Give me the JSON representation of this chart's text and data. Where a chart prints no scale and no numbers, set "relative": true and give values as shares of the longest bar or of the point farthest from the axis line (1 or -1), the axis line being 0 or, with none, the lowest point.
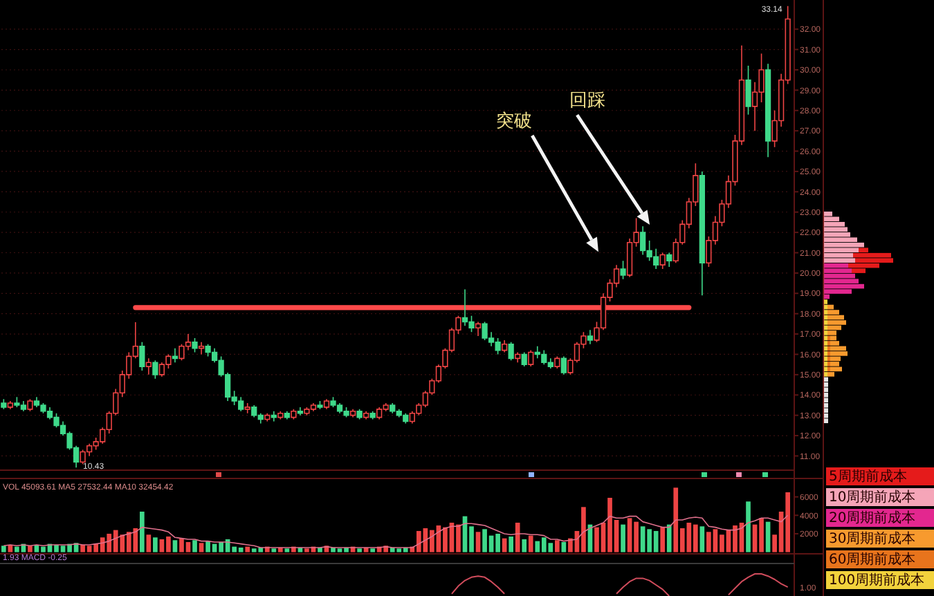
{
  "chart_data": [
    {
      "type": "candlestick",
      "categories": [
        null,
        null,
        null,
        null,
        null,
        null,
        null,
        null,
        null,
        null,
        null,
        null,
        null,
        null,
        null,
        null,
        null,
        null,
        null,
        null,
        null,
        null,
        null,
        null,
        null,
        null,
        null,
        null,
        null,
        null,
        null,
        null,
        null,
        null,
        null,
        null,
        null,
        null,
        null,
        null,
        null,
        null,
        null,
        null,
        null,
        null,
        null,
        null,
        null,
        null,
        null,
        null,
        null,
        null,
        null,
        null,
        null,
        null,
        null,
        null,
        null,
        null,
        null,
        null,
        null,
        null,
        null,
        null,
        null,
        null,
        null,
        null,
        null,
        null,
        null,
        null,
        null,
        null,
        null,
        null,
        null,
        null,
        null,
        null,
        null,
        null,
        null,
        null,
        null,
        null,
        null,
        null,
        null,
        null,
        null,
        null,
        null,
        null,
        null,
        null,
        null,
        null,
        null,
        null,
        null,
        null,
        null,
        null,
        null,
        null,
        null,
        null,
        null,
        null,
        null,
        null,
        null,
        null,
        null,
        null
      ],
      "ohlc": [
        [
          13.6,
          13.8,
          13.3,
          13.4
        ],
        [
          13.4,
          13.7,
          13.3,
          13.6
        ],
        [
          13.6,
          13.9,
          13.4,
          13.5
        ],
        [
          13.5,
          13.7,
          13.2,
          13.3
        ],
        [
          13.3,
          13.8,
          13.2,
          13.7
        ],
        [
          13.7,
          13.9,
          13.4,
          13.5
        ],
        [
          13.5,
          13.6,
          13.1,
          13.2
        ],
        [
          13.2,
          13.4,
          12.8,
          12.9
        ],
        [
          12.9,
          13.1,
          12.4,
          12.5
        ],
        [
          12.5,
          12.7,
          12.0,
          12.1
        ],
        [
          12.1,
          12.2,
          11.3,
          11.4
        ],
        [
          11.4,
          11.5,
          10.43,
          10.7
        ],
        [
          10.7,
          11.3,
          10.6,
          11.2
        ],
        [
          11.2,
          11.6,
          11.0,
          11.5
        ],
        [
          11.5,
          11.9,
          11.3,
          11.7
        ],
        [
          11.7,
          12.4,
          11.6,
          12.3
        ],
        [
          12.3,
          13.2,
          12.1,
          13.1
        ],
        [
          13.1,
          14.3,
          13.0,
          14.1
        ],
        [
          14.1,
          15.2,
          13.9,
          15.0
        ],
        [
          15.0,
          16.1,
          14.8,
          15.9
        ],
        [
          15.9,
          17.58,
          15.8,
          16.4
        ],
        [
          16.4,
          16.6,
          15.2,
          15.4
        ],
        [
          15.4,
          15.8,
          15.0,
          15.6
        ],
        [
          15.6,
          15.7,
          14.8,
          15.0
        ],
        [
          15.0,
          15.6,
          14.9,
          15.5
        ],
        [
          15.5,
          16.0,
          15.3,
          15.9
        ],
        [
          15.9,
          16.3,
          15.6,
          15.8
        ],
        [
          15.8,
          16.5,
          15.7,
          16.4
        ],
        [
          16.4,
          17.0,
          16.2,
          16.6
        ],
        [
          16.6,
          16.8,
          16.1,
          16.3
        ],
        [
          16.3,
          16.6,
          16.0,
          16.4
        ],
        [
          16.4,
          16.5,
          15.9,
          16.1
        ],
        [
          16.1,
          16.3,
          15.6,
          15.7
        ],
        [
          15.7,
          15.9,
          14.9,
          15.0
        ],
        [
          15.0,
          15.1,
          13.7,
          13.9
        ],
        [
          13.9,
          14.2,
          13.5,
          13.7
        ],
        [
          13.7,
          13.9,
          13.2,
          13.3
        ],
        [
          13.3,
          13.6,
          13.1,
          13.4
        ],
        [
          13.4,
          13.5,
          12.9,
          13.0
        ],
        [
          13.0,
          13.1,
          12.6,
          12.8
        ],
        [
          12.8,
          13.1,
          12.7,
          13.0
        ],
        [
          13.0,
          13.2,
          12.7,
          12.9
        ],
        [
          12.9,
          13.2,
          12.8,
          13.1
        ],
        [
          13.1,
          13.2,
          12.8,
          12.9
        ],
        [
          12.9,
          13.3,
          12.8,
          13.2
        ],
        [
          13.2,
          13.4,
          13.0,
          13.1
        ],
        [
          13.1,
          13.4,
          13.0,
          13.3
        ],
        [
          13.3,
          13.6,
          13.2,
          13.5
        ],
        [
          13.5,
          13.7,
          13.3,
          13.4
        ],
        [
          13.4,
          13.8,
          13.3,
          13.7
        ],
        [
          13.7,
          13.9,
          13.4,
          13.5
        ],
        [
          13.5,
          13.6,
          13.1,
          13.2
        ],
        [
          13.2,
          13.4,
          12.9,
          13.0
        ],
        [
          13.0,
          13.3,
          12.9,
          13.2
        ],
        [
          13.2,
          13.3,
          12.8,
          12.9
        ],
        [
          12.9,
          13.2,
          12.8,
          13.1
        ],
        [
          13.1,
          13.2,
          12.8,
          12.9
        ],
        [
          12.9,
          13.4,
          12.8,
          13.3
        ],
        [
          13.3,
          13.6,
          13.2,
          13.5
        ],
        [
          13.5,
          13.6,
          13.1,
          13.2
        ],
        [
          13.2,
          13.3,
          12.9,
          13.0
        ],
        [
          13.0,
          13.1,
          12.6,
          12.7
        ],
        [
          12.7,
          13.2,
          12.6,
          13.1
        ],
        [
          13.1,
          13.6,
          13.0,
          13.5
        ],
        [
          13.5,
          14.2,
          13.4,
          14.1
        ],
        [
          14.1,
          14.8,
          14.0,
          14.7
        ],
        [
          14.7,
          15.5,
          14.6,
          15.4
        ],
        [
          15.4,
          16.3,
          15.3,
          16.2
        ],
        [
          16.2,
          17.3,
          16.1,
          17.2
        ],
        [
          17.2,
          17.9,
          17.0,
          17.8
        ],
        [
          17.8,
          19.2,
          17.4,
          17.6
        ],
        [
          17.6,
          17.9,
          17.1,
          17.3
        ],
        [
          17.3,
          17.6,
          16.9,
          17.5
        ],
        [
          17.5,
          17.6,
          16.7,
          16.8
        ],
        [
          16.8,
          17.1,
          16.4,
          16.6
        ],
        [
          16.6,
          16.8,
          16.0,
          16.2
        ],
        [
          16.2,
          16.7,
          16.1,
          16.5
        ],
        [
          16.5,
          16.6,
          15.7,
          15.8
        ],
        [
          15.8,
          16.1,
          15.6,
          16.0
        ],
        [
          16.0,
          16.1,
          15.4,
          15.5
        ],
        [
          15.5,
          16.2,
          15.4,
          16.1
        ],
        [
          16.1,
          16.4,
          15.8,
          16.0
        ],
        [
          16.0,
          16.2,
          15.5,
          15.6
        ],
        [
          15.6,
          15.8,
          15.3,
          15.4
        ],
        [
          15.4,
          15.9,
          15.3,
          15.8
        ],
        [
          15.8,
          15.9,
          15.0,
          15.1
        ],
        [
          15.1,
          15.8,
          15.0,
          15.7
        ],
        [
          15.7,
          16.6,
          15.6,
          16.5
        ],
        [
          16.5,
          17.1,
          16.3,
          16.9
        ],
        [
          16.9,
          17.2,
          16.5,
          16.7
        ],
        [
          16.7,
          17.6,
          16.6,
          17.3
        ],
        [
          17.3,
          19.0,
          17.2,
          18.8
        ],
        [
          18.8,
          19.7,
          18.6,
          19.5
        ],
        [
          19.5,
          20.4,
          19.3,
          20.2
        ],
        [
          20.2,
          20.6,
          19.7,
          19.9
        ],
        [
          19.9,
          21.7,
          19.8,
          21.5
        ],
        [
          21.5,
          22.7,
          21.3,
          22.0
        ],
        [
          22.0,
          22.3,
          20.9,
          21.1
        ],
        [
          21.1,
          21.6,
          20.6,
          20.8
        ],
        [
          20.8,
          21.2,
          20.2,
          20.4
        ],
        [
          20.4,
          21.0,
          20.2,
          20.9
        ],
        [
          20.9,
          21.0,
          20.3,
          20.6
        ],
        [
          20.6,
          21.7,
          20.5,
          21.5
        ],
        [
          21.5,
          22.6,
          21.4,
          22.4
        ],
        [
          22.4,
          23.7,
          22.2,
          23.5
        ],
        [
          23.5,
          25.4,
          23.3,
          24.8
        ],
        [
          24.8,
          25.0,
          18.9,
          20.5
        ],
        [
          20.5,
          21.8,
          20.3,
          21.6
        ],
        [
          21.6,
          22.8,
          21.4,
          22.5
        ],
        [
          22.5,
          23.6,
          22.3,
          23.4
        ],
        [
          23.4,
          24.8,
          23.2,
          24.5
        ],
        [
          24.5,
          26.8,
          24.3,
          26.5
        ],
        [
          26.5,
          31.2,
          26.3,
          29.5
        ],
        [
          29.5,
          30.2,
          27.8,
          28.2
        ],
        [
          28.2,
          29.4,
          27.0,
          28.9
        ],
        [
          28.9,
          30.8,
          28.4,
          30.0
        ],
        [
          30.0,
          30.3,
          25.7,
          26.5
        ],
        [
          26.5,
          28.0,
          26.2,
          27.5
        ],
        [
          27.5,
          29.8,
          27.2,
          29.5
        ],
        [
          29.5,
          33.14,
          29.3,
          32.5
        ]
      ],
      "colors": [
        "#3fd98a",
        "#ee4444",
        "#3fd98a",
        "#3fd98a",
        "#ee4444",
        "#3fd98a",
        "#3fd98a",
        "#3fd98a",
        "#3fd98a",
        "#3fd98a",
        "#3fd98a",
        "#3fd98a",
        "#ee4444",
        "#ee4444",
        "#ee4444",
        "#ee4444",
        "#ee4444",
        "#ee4444",
        "#ee4444",
        "#ee4444",
        "#ee4444",
        "#3fd98a",
        "#ee4444",
        "#3fd98a",
        "#ee4444",
        "#ee4444",
        "#3fd98a",
        "#ee4444",
        "#ee4444",
        "#3fd98a",
        "#ee4444",
        "#3fd98a",
        "#3fd98a",
        "#3fd98a",
        "#3fd98a",
        "#3fd98a",
        "#3fd98a",
        "#ee4444",
        "#3fd98a",
        "#3fd98a",
        "#ee4444",
        "#3fd98a",
        "#ee4444",
        "#3fd98a",
        "#ee4444",
        "#3fd98a",
        "#ee4444",
        "#ee4444",
        "#3fd98a",
        "#ee4444",
        "#3fd98a",
        "#3fd98a",
        "#3fd98a",
        "#ee4444",
        "#3fd98a",
        "#ee4444",
        "#3fd98a",
        "#ee4444",
        "#ee4444",
        "#3fd98a",
        "#3fd98a",
        "#3fd98a",
        "#ee4444",
        "#ee4444",
        "#ee4444",
        "#ee4444",
        "#ee4444",
        "#ee4444",
        "#ee4444",
        "#ee4444",
        "#3fd98a",
        "#3fd98a",
        "#ee4444",
        "#3fd98a",
        "#3fd98a",
        "#3fd98a",
        "#ee4444",
        "#3fd98a",
        "#ee4444",
        "#3fd98a",
        "#ee4444",
        "#3fd98a",
        "#3fd98a",
        "#3fd98a",
        "#ee4444",
        "#3fd98a",
        "#ee4444",
        "#ee4444",
        "#ee4444",
        "#3fd98a",
        "#ee4444",
        "#ee4444",
        "#ee4444",
        "#ee4444",
        "#3fd98a",
        "#ee4444",
        "#ee4444",
        "#3fd98a",
        "#3fd98a",
        "#3fd98a",
        "#ee4444",
        "#3fd98a",
        "#ee4444",
        "#ee4444",
        "#ee4444",
        "#ee4444",
        "#3fd98a",
        "#ee4444",
        "#ee4444",
        "#ee4444",
        "#ee4444",
        "#ee4444",
        "#ee4444",
        "#3fd98a",
        "#ee4444",
        "#ee4444",
        "#3fd98a",
        "#ee4444",
        "#ee4444",
        "#ee4444"
      ],
      "series": [
        {
          "type": "line",
          "color": "#ff4a4a",
          "values": [
            null,
            null,
            null,
            null,
            null,
            null,
            null,
            null,
            null,
            null,
            null,
            null,
            null,
            null,
            null,
            null,
            null,
            null,
            null,
            null,
            18.3,
            18.3,
            18.3,
            18.3,
            18.3,
            18.3,
            18.3,
            18.3,
            18.3,
            18.3,
            18.3,
            18.3,
            18.3,
            18.3,
            18.3,
            18.3,
            18.3,
            18.3,
            18.3,
            18.3,
            18.3,
            18.3,
            18.3,
            18.3,
            18.3,
            18.3,
            18.3,
            18.3,
            18.3,
            18.3,
            18.3,
            18.3,
            18.3,
            18.3,
            18.3,
            18.3,
            18.3,
            18.3,
            18.3,
            18.3,
            18.3,
            18.3,
            18.3,
            18.3,
            18.3,
            18.3,
            18.3,
            18.3,
            18.3,
            18.3,
            18.3,
            18.3,
            18.3,
            18.3,
            18.3,
            18.3,
            18.3,
            18.3,
            18.3,
            18.3,
            18.3,
            18.3,
            18.3,
            18.3,
            18.3,
            18.3,
            18.3,
            18.3,
            18.3,
            18.3,
            18.3,
            18.3,
            18.3,
            18.3,
            18.3,
            18.3,
            18.3,
            18.3,
            18.3,
            18.3,
            18.3,
            18.3,
            18.3,
            18.3,
            18.3,
            null,
            null,
            null,
            null,
            null,
            null,
            null,
            null,
            null,
            null,
            null,
            null,
            null,
            null,
            null
          ]
        }
      ],
      "ylim": [
        10.3,
        33.3
      ],
      "yticks": [
        {
          "value": 11,
          "label": "11.00"
        },
        {
          "value": 12,
          "label": "12.00"
        },
        {
          "value": 13,
          "label": "13.00"
        },
        {
          "value": 14,
          "label": "14.00"
        },
        {
          "value": 15,
          "label": "15.00"
        },
        {
          "value": 16,
          "label": "16.00"
        },
        {
          "value": 17,
          "label": "17.00"
        },
        {
          "value": 18,
          "label": "18.00"
        },
        {
          "value": 19,
          "label": "19.00"
        },
        {
          "value": 20,
          "label": "20.00"
        },
        {
          "value": 21,
          "label": "21.00"
        },
        {
          "value": 22,
          "label": "22.00"
        },
        {
          "value": 23,
          "label": "23.00"
        },
        {
          "value": 24,
          "label": "24.00"
        },
        {
          "value": 25,
          "label": "25.00"
        },
        {
          "value": 26,
          "label": "26.00"
        },
        {
          "value": 27,
          "label": "27.00"
        },
        {
          "value": 28,
          "label": "28.00"
        },
        {
          "value": 29,
          "label": "29.00"
        },
        {
          "value": 30,
          "label": "30.00"
        },
        {
          "value": 31,
          "label": "31.00"
        },
        {
          "value": 32,
          "label": "32.00"
        }
      ],
      "grid": "y",
      "annotations": [
        "突破",
        "回踩",
        "10.43",
        "33.14"
      ]
    },
    {
      "type": "bar",
      "orientation": "horizontal",
      "stacked": true,
      "relative": true,
      "legend": "bottom right",
      "categories": [
        null,
        null,
        null,
        null,
        null,
        null,
        null,
        null,
        null,
        null,
        null,
        null,
        null,
        null,
        null,
        null,
        null,
        null,
        null,
        null,
        null,
        null,
        null,
        null,
        null,
        null,
        null,
        null,
        null,
        null,
        null,
        null,
        null,
        null,
        null,
        null,
        null,
        null,
        null,
        null,
        null
      ],
      "series": [
        {
          "color": "#e6e6e6",
          "values": [
            null,
            null,
            null,
            null,
            null,
            null,
            null,
            null,
            null,
            null,
            null,
            null,
            null,
            null,
            null,
            null,
            null,
            null,
            null,
            null,
            null,
            null,
            null,
            null,
            null,
            null,
            null,
            null,
            null,
            null,
            null,
            null,
            0.06,
            0.06,
            0.06,
            0.06,
            0.06,
            0.06,
            0.06,
            0.06,
            0.06
          ]
        },
        {
          "name": "100周期前成本",
          "color": "#f2d23c",
          "values": [
            null,
            null,
            null,
            null,
            null,
            null,
            null,
            null,
            null,
            null,
            null,
            null,
            null,
            null,
            null,
            null,
            null,
            0.05,
            0.05,
            0.05,
            0.05,
            0.05,
            0.05,
            0.05,
            0.05,
            0.05,
            0.05,
            0.05,
            0.05,
            0.05,
            0.05,
            0.05,
            null,
            null,
            null,
            null,
            null,
            null,
            null,
            null,
            null
          ]
        },
        {
          "name": "60周期前成本",
          "color": "#e8741c",
          "values": [
            null,
            null,
            null,
            null,
            null,
            null,
            null,
            null,
            null,
            null,
            null,
            null,
            null,
            null,
            null,
            null,
            null,
            null,
            null,
            null,
            null,
            null,
            null,
            null,
            0.04,
            0.04,
            0.04,
            0.04,
            0.04,
            0.04,
            0.04,
            null,
            null,
            null,
            null,
            null,
            null,
            null,
            null,
            null,
            null
          ]
        },
        {
          "name": "30周期前成本",
          "color": "#f79a2e",
          "values": [
            null,
            null,
            null,
            null,
            null,
            null,
            null,
            null,
            null,
            null,
            null,
            null,
            null,
            null,
            null,
            null,
            null,
            null,
            0.09,
            0.17,
            0.24,
            0.27,
            0.2,
            0.13,
            0.09,
            0.13,
            0.23,
            0.25,
            0.15,
            0.13,
            0.17,
            0.1,
            null,
            null,
            null,
            null,
            null,
            null,
            null,
            null,
            null
          ]
        },
        {
          "name": "20周期前成本",
          "color": "#e3278f",
          "values": [
            null,
            null,
            null,
            null,
            null,
            null,
            null,
            null,
            null,
            null,
            0.35,
            0.4,
            0.45,
            0.5,
            0.58,
            0.4,
            0.08,
            null,
            null,
            null,
            null,
            null,
            null,
            null,
            null,
            null,
            null,
            null,
            null,
            null,
            null,
            null,
            null,
            null,
            null,
            null,
            null,
            null,
            null,
            null,
            null
          ]
        },
        {
          "name": "10周期前成本",
          "color": "#f5a5b8",
          "values": [
            0.12,
            0.22,
            0.3,
            0.34,
            0.38,
            0.48,
            0.58,
            0.5,
            0.42,
            0.45,
            null,
            null,
            null,
            null,
            null,
            null,
            null,
            null,
            null,
            null,
            null,
            null,
            null,
            null,
            null,
            null,
            null,
            null,
            null,
            null,
            null,
            null,
            null,
            null,
            null,
            null,
            null,
            null,
            null,
            null,
            null
          ]
        },
        {
          "name": "5周期前成本",
          "color": "#e51b1b",
          "values": [
            null,
            null,
            null,
            null,
            null,
            null,
            null,
            0.14,
            0.55,
            0.55,
            0.45,
            0.2,
            null,
            null,
            null,
            null,
            null,
            null,
            null,
            null,
            null,
            null,
            null,
            null,
            null,
            null,
            null,
            null,
            null,
            null,
            null,
            null,
            null,
            null,
            null,
            null,
            null,
            null,
            null,
            null,
            null
          ]
        }
      ]
    },
    {
      "type": "bar",
      "title": "VOL 45093.61 MA5 27532.44 MA10 32454.42",
      "categories": [
        null,
        null,
        null,
        null,
        null,
        null,
        null,
        null,
        null,
        null,
        null,
        null,
        null,
        null,
        null,
        null,
        null,
        null,
        null,
        null,
        null,
        null,
        null,
        null,
        null,
        null,
        null,
        null,
        null,
        null,
        null,
        null,
        null,
        null,
        null,
        null,
        null,
        null,
        null,
        null,
        null,
        null,
        null,
        null,
        null,
        null,
        null,
        null,
        null,
        null,
        null,
        null,
        null,
        null,
        null,
        null,
        null,
        null,
        null,
        null,
        null,
        null,
        null,
        null,
        null,
        null,
        null,
        null,
        null,
        null,
        null,
        null,
        null,
        null,
        null,
        null,
        null,
        null,
        null,
        null,
        null,
        null,
        null,
        null,
        null,
        null,
        null,
        null,
        null,
        null,
        null,
        null,
        null,
        null,
        null,
        null,
        null,
        null,
        null,
        null,
        null,
        null,
        null,
        null,
        null,
        null,
        null,
        null,
        null,
        null,
        null,
        null,
        null,
        null,
        null,
        null,
        null,
        null,
        null,
        null
      ],
      "series": [
        {
          "type": "bar",
          "values": [
            700,
            800,
            600,
            900,
            700,
            800,
            600,
            900,
            800,
            700,
            900,
            1000,
            800,
            700,
            900,
            1600,
            2000,
            2400,
            1900,
            2200,
            2600,
            4400,
            1900,
            1600,
            1400,
            1700,
            1300,
            1500,
            1100,
            1300,
            1000,
            1200,
            900,
            1100,
            1400,
            600,
            500,
            600,
            400,
            500,
            600,
            400,
            500,
            400,
            600,
            500,
            400,
            600,
            500,
            700,
            500,
            400,
            500,
            600,
            400,
            500,
            400,
            600,
            700,
            500,
            400,
            500,
            600,
            2300,
            2600,
            2400,
            2900,
            2700,
            3200,
            3000,
            3900,
            2800,
            2200,
            2500,
            1800,
            2000,
            1500,
            1700,
            3200,
            1400,
            1800,
            1200,
            1600,
            1000,
            1300,
            1100,
            1500,
            2300,
            4900,
            3000,
            2700,
            3200,
            5900,
            3500,
            3000,
            3700,
            3300,
            2800,
            2500,
            2300,
            2700,
            3000,
            7000,
            2600,
            3200,
            3000,
            2800,
            2200,
            2500,
            1900,
            2400,
            2900,
            3200,
            5500,
            3000,
            3700,
            3300,
            1900,
            4400,
            6500
          ],
          "colors": [
            "#3fd98a",
            "#ee4444",
            "#3fd98a",
            "#3fd98a",
            "#ee4444",
            "#3fd98a",
            "#3fd98a",
            "#3fd98a",
            "#3fd98a",
            "#3fd98a",
            "#3fd98a",
            "#3fd98a",
            "#ee4444",
            "#ee4444",
            "#ee4444",
            "#ee4444",
            "#ee4444",
            "#ee4444",
            "#ee4444",
            "#ee4444",
            "#ee4444",
            "#3fd98a",
            "#ee4444",
            "#3fd98a",
            "#ee4444",
            "#ee4444",
            "#3fd98a",
            "#ee4444",
            "#ee4444",
            "#3fd98a",
            "#ee4444",
            "#3fd98a",
            "#3fd98a",
            "#3fd98a",
            "#3fd98a",
            "#3fd98a",
            "#3fd98a",
            "#ee4444",
            "#3fd98a",
            "#3fd98a",
            "#ee4444",
            "#3fd98a",
            "#ee4444",
            "#3fd98a",
            "#ee4444",
            "#3fd98a",
            "#ee4444",
            "#ee4444",
            "#3fd98a",
            "#ee4444",
            "#3fd98a",
            "#3fd98a",
            "#3fd98a",
            "#ee4444",
            "#3fd98a",
            "#ee4444",
            "#3fd98a",
            "#ee4444",
            "#ee4444",
            "#3fd98a",
            "#3fd98a",
            "#3fd98a",
            "#ee4444",
            "#ee4444",
            "#ee4444",
            "#ee4444",
            "#ee4444",
            "#ee4444",
            "#ee4444",
            "#ee4444",
            "#3fd98a",
            "#3fd98a",
            "#ee4444",
            "#3fd98a",
            "#3fd98a",
            "#3fd98a",
            "#ee4444",
            "#3fd98a",
            "#ee4444",
            "#3fd98a",
            "#ee4444",
            "#3fd98a",
            "#3fd98a",
            "#3fd98a",
            "#ee4444",
            "#3fd98a",
            "#ee4444",
            "#ee4444",
            "#ee4444",
            "#3fd98a",
            "#ee4444",
            "#ee4444",
            "#ee4444",
            "#ee4444",
            "#3fd98a",
            "#ee4444",
            "#ee4444",
            "#3fd98a",
            "#3fd98a",
            "#3fd98a",
            "#ee4444",
            "#3fd98a",
            "#ee4444",
            "#ee4444",
            "#ee4444",
            "#ee4444",
            "#3fd98a",
            "#ee4444",
            "#ee4444",
            "#ee4444",
            "#ee4444",
            "#ee4444",
            "#ee4444",
            "#3fd98a",
            "#ee4444",
            "#ee4444",
            "#3fd98a",
            "#ee4444",
            "#ee4444",
            "#ee4444"
          ]
        },
        {
          "type": "line",
          "color": "#e0708c",
          "values": [
            700,
            800,
            700,
            800,
            700,
            800,
            700,
            800,
            800,
            800,
            800,
            900,
            800,
            800,
            900,
            1000,
            1200,
            1500,
            1800,
            2000,
            2200,
            2700,
            2600,
            2500,
            2400,
            2200,
            1600,
            1500,
            1400,
            1400,
            1200,
            1200,
            1100,
            1100,
            1100,
            1000,
            900,
            800,
            700,
            500,
            500,
            500,
            500,
            500,
            500,
            500,
            500,
            500,
            500,
            600,
            500,
            500,
            500,
            500,
            500,
            500,
            500,
            500,
            600,
            500,
            500,
            500,
            500,
            900,
            1300,
            1700,
            2200,
            2600,
            2800,
            2800,
            3100,
            3100,
            3000,
            2900,
            2600,
            2300,
            2000,
            1900,
            2000,
            2000,
            1900,
            1900,
            1800,
            1400,
            1400,
            1200,
            1300,
            1400,
            2200,
            2600,
            2900,
            3200,
            3900,
            3700,
            3700,
            3900,
            3900,
            3300,
            3100,
            2900,
            2700,
            2700,
            3500,
            3500,
            3700,
            3800,
            3700,
            2800,
            2700,
            2500,
            2400,
            2400,
            2600,
            3200,
            3400,
            3700,
            3700,
            3500,
            3300,
            4000
          ]
        }
      ],
      "ylim": [
        0,
        8000
      ],
      "yticks": [
        2000,
        4000,
        6000
      ]
    },
    {
      "type": "line",
      "relative": true,
      "title": "1.93 MACD -0.25",
      "annotations": [
        "1.00"
      ],
      "categories": [
        null,
        null,
        null,
        null,
        null,
        null,
        null,
        null,
        null,
        null,
        null,
        null,
        null,
        null,
        null,
        null,
        null,
        null,
        null,
        null,
        null,
        null,
        null,
        null,
        null,
        null,
        null,
        null,
        null,
        null,
        null,
        null,
        null,
        null,
        null,
        null,
        null,
        null,
        null,
        null,
        null,
        null,
        null,
        null,
        null,
        null,
        null,
        null,
        null,
        null,
        null,
        null,
        null,
        null,
        null,
        null,
        null,
        null,
        null,
        null,
        null,
        null,
        null,
        null,
        null,
        null,
        null,
        null,
        null,
        null,
        null,
        null,
        null,
        null,
        null,
        null,
        null,
        null,
        null,
        null,
        null,
        null,
        null,
        null,
        null,
        null,
        null,
        null,
        null,
        null,
        null,
        null,
        null,
        null,
        null,
        null,
        null,
        null,
        null,
        null,
        null,
        null,
        null,
        null,
        null,
        null,
        null,
        null,
        null,
        null,
        null,
        null,
        null,
        null,
        null,
        null,
        null,
        null,
        null,
        null
      ],
      "series": [
        {
          "color": "#d04c5c",
          "values": [
            null,
            null,
            null,
            null,
            null,
            null,
            null,
            null,
            null,
            null,
            null,
            null,
            null,
            null,
            null,
            null,
            null,
            null,
            null,
            null,
            null,
            null,
            null,
            null,
            null,
            null,
            null,
            null,
            null,
            null,
            null,
            null,
            null,
            null,
            null,
            null,
            null,
            null,
            null,
            null,
            null,
            null,
            null,
            null,
            null,
            null,
            null,
            null,
            null,
            null,
            null,
            null,
            null,
            null,
            null,
            null,
            null,
            null,
            null,
            null,
            null,
            null,
            null,
            null,
            null,
            null,
            null,
            null,
            0.1,
            0.45,
            0.7,
            0.85,
            0.9,
            0.85,
            0.65,
            0.4,
            0.1,
            null,
            null,
            null,
            null,
            null,
            null,
            null,
            null,
            null,
            null,
            null,
            null,
            null,
            null,
            null,
            null,
            0.1,
            0.4,
            0.65,
            0.8,
            0.8,
            0.7,
            0.5,
            0.3,
            0,
            null,
            null,
            null,
            null,
            null,
            null,
            null,
            null,
            0.05,
            0.35,
            0.65,
            0.85,
            1,
            1,
            0.9,
            0.75,
            0.55,
            0.4
          ]
        }
      ]
    }
  ]
}
